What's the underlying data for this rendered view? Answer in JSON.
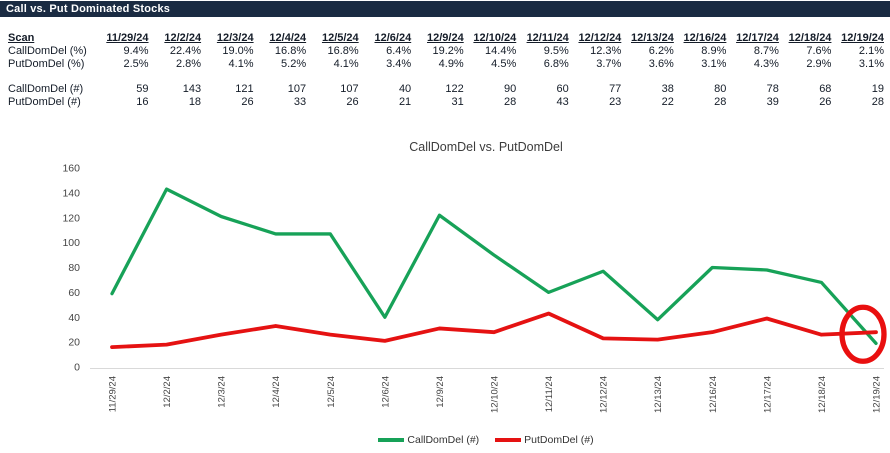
{
  "header": {
    "title": "Call vs. Put Dominated Stocks"
  },
  "table": {
    "scan_label": "Scan",
    "dates": [
      "11/29/24",
      "12/2/24",
      "12/3/24",
      "12/4/24",
      "12/5/24",
      "12/6/24",
      "12/9/24",
      "12/10/24",
      "12/11/24",
      "12/12/24",
      "12/13/24",
      "12/16/24",
      "12/17/24",
      "12/18/24",
      "12/19/24"
    ],
    "rows": [
      {
        "label": "CallDomDel (%)",
        "values": [
          "9.4%",
          "22.4%",
          "19.0%",
          "16.8%",
          "16.8%",
          "6.4%",
          "19.2%",
          "14.4%",
          "9.5%",
          "12.3%",
          "6.2%",
          "8.9%",
          "8.7%",
          "7.6%",
          "2.1%"
        ]
      },
      {
        "label": "PutDomDel (%)",
        "values": [
          "2.5%",
          "2.8%",
          "4.1%",
          "5.2%",
          "4.1%",
          "3.4%",
          "4.9%",
          "4.5%",
          "6.8%",
          "3.7%",
          "3.6%",
          "3.1%",
          "4.3%",
          "2.9%",
          "3.1%"
        ]
      },
      {
        "label": "CallDomDel (#)",
        "values": [
          "59",
          "143",
          "121",
          "107",
          "107",
          "40",
          "122",
          "90",
          "60",
          "77",
          "38",
          "80",
          "78",
          "68",
          "19"
        ]
      },
      {
        "label": "PutDomDel (#)",
        "values": [
          "16",
          "18",
          "26",
          "33",
          "26",
          "21",
          "31",
          "28",
          "43",
          "23",
          "22",
          "28",
          "39",
          "26",
          "28"
        ]
      }
    ]
  },
  "chart_data": {
    "type": "line",
    "title": "CallDomDel vs. PutDomDel",
    "x": [
      "11/29/24",
      "12/2/24",
      "12/3/24",
      "12/4/24",
      "12/5/24",
      "12/6/24",
      "12/9/24",
      "12/10/24",
      "12/11/24",
      "12/12/24",
      "12/13/24",
      "12/16/24",
      "12/17/24",
      "12/18/24",
      "12/19/24"
    ],
    "series": [
      {
        "name": "CallDomDel (#)",
        "color": "#17a258",
        "values": [
          59,
          143,
          121,
          107,
          107,
          40,
          122,
          90,
          60,
          77,
          38,
          80,
          78,
          68,
          19
        ]
      },
      {
        "name": "PutDomDel (#)",
        "color": "#e51212",
        "values": [
          16,
          18,
          26,
          33,
          26,
          21,
          31,
          28,
          43,
          23,
          22,
          28,
          39,
          26,
          28
        ]
      }
    ],
    "ylim": [
      0,
      160
    ],
    "yticks": [
      0,
      20,
      40,
      60,
      80,
      100,
      120,
      140,
      160
    ],
    "xlabel": "",
    "ylabel": "",
    "grid": false,
    "legend_position": "bottom",
    "annotation": {
      "type": "ellipse-highlight",
      "target": "last-point-crossover",
      "color": "#e90f0f"
    }
  },
  "colors": {
    "titlebar_bg": "#1a2b42",
    "titlebar_text": "#ffffff",
    "table_text": "#141c28",
    "axis_line": "#d9d9d9",
    "tick_label": "#454545",
    "series_green": "#17a258",
    "series_red": "#e51212",
    "annotation_red": "#e90f0f"
  }
}
